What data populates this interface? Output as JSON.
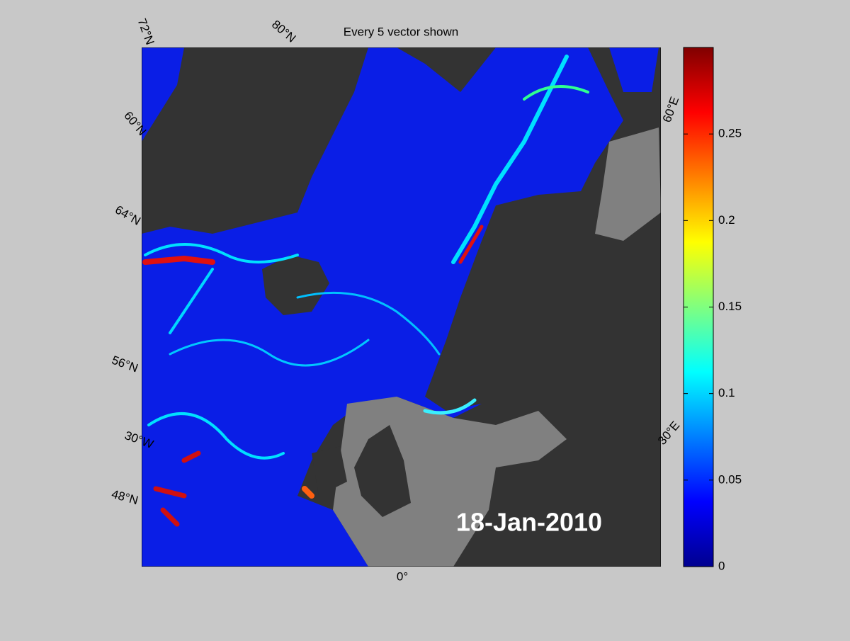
{
  "title": "Every 5 vector shown",
  "date": "18-Jan-2010",
  "graticule_labels": [
    "72°N",
    "80°N",
    "60°N",
    "64°N",
    "56°N",
    "30°W",
    "48°N",
    "0°",
    "30°E",
    "60°E"
  ],
  "colorbar": {
    "colormap": "jet",
    "lim": [
      0,
      0.3
    ],
    "ticks": [
      0,
      0.05,
      0.1,
      0.15,
      0.2,
      0.25
    ]
  }
}
